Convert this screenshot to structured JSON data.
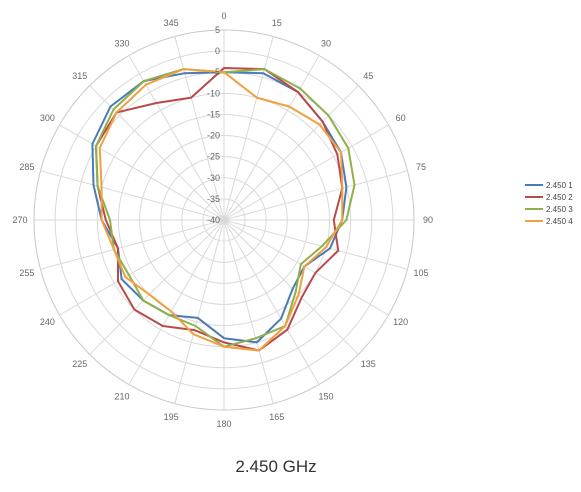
{
  "chart_data": {
    "type": "line",
    "subtype": "radar",
    "title": "2.450 GHz",
    "radial_axis": {
      "min": -40,
      "max": 5,
      "step": 5,
      "ticks": [
        "5",
        "0",
        "-5",
        "-10",
        "-15",
        "-20",
        "-25",
        "-30",
        "-35",
        "-40"
      ]
    },
    "angles": [
      0,
      15,
      30,
      45,
      60,
      75,
      90,
      105,
      120,
      135,
      150,
      165,
      180,
      195,
      210,
      225,
      240,
      255,
      270,
      285,
      300,
      315,
      330,
      345
    ],
    "grid": true,
    "legend_position": "right",
    "series": [
      {
        "name": "2.450 1",
        "color": "#4a7ab8",
        "values": [
          -5,
          -4,
          -5,
          -7,
          -8,
          -10,
          -12,
          -14,
          -18,
          -17,
          -13,
          -10,
          -12,
          -16,
          -14,
          -13,
          -12,
          -14,
          -11,
          -8,
          -4,
          -2,
          -2,
          -4
        ]
      },
      {
        "name": "2.450 2",
        "color": "#b94a4a",
        "values": [
          -4,
          -3,
          -5,
          -7,
          -9,
          -11,
          -14,
          -12,
          -15,
          -14,
          -10,
          -8,
          -11,
          -13,
          -11,
          -10,
          -11,
          -14,
          -12,
          -9,
          -5,
          -4,
          -8,
          -10
        ]
      },
      {
        "name": "2.450 3",
        "color": "#8fb04a",
        "values": [
          -5,
          -3,
          -4,
          -5,
          -6,
          -8,
          -11,
          -16,
          -19,
          -16,
          -11,
          -11,
          -10,
          -14,
          -14,
          -13,
          -14,
          -13,
          -13,
          -9,
          -5,
          -3,
          -2,
          -3
        ]
      },
      {
        "name": "2.450 4",
        "color": "#f0a040",
        "values": [
          -5,
          -10,
          -9,
          -8,
          -8,
          -11,
          -12,
          -15,
          -18,
          -15,
          -11,
          -8,
          -10,
          -12,
          -15,
          -15,
          -13,
          -13,
          -11,
          -10,
          -6,
          -4,
          -3,
          -3
        ]
      }
    ]
  }
}
